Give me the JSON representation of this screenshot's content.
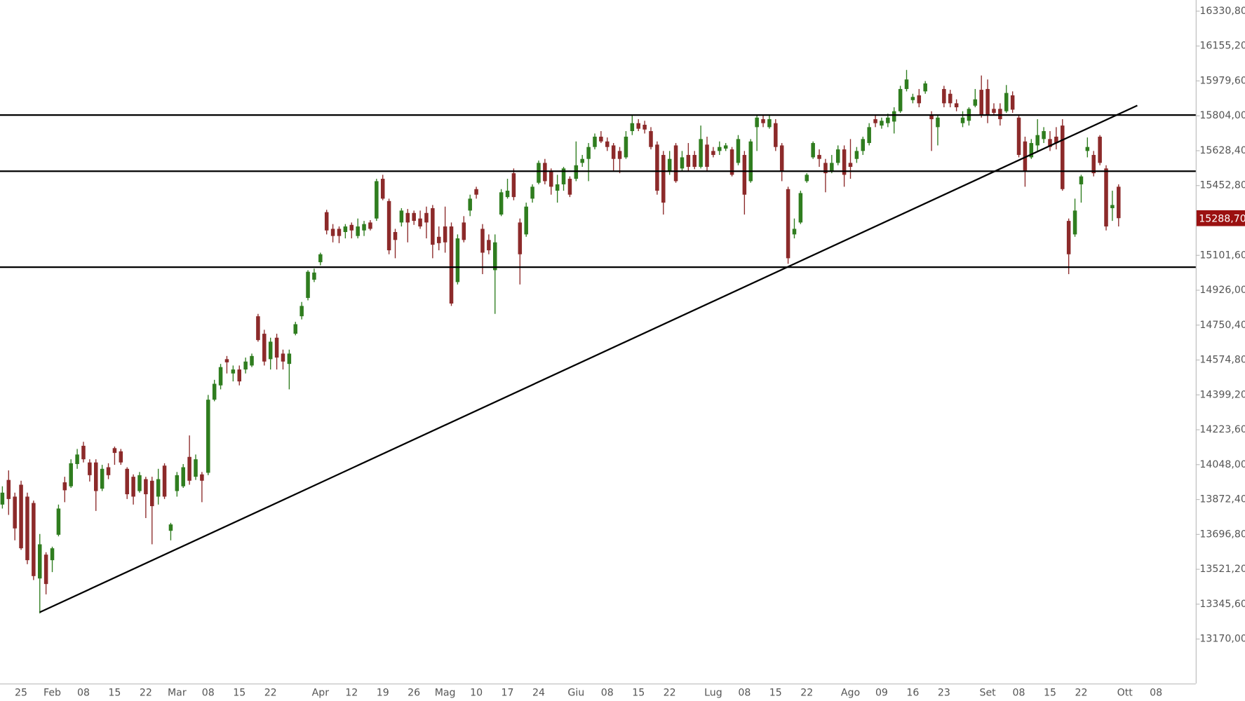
{
  "chart_data": {
    "type": "candlestick",
    "up_color": "#2f7d1f",
    "down_color": "#8c2a2a",
    "line_color": "#000000",
    "grid": false,
    "categories": [
      null,
      null,
      null,
      "25",
      null,
      null,
      null,
      null,
      "Feb",
      null,
      null,
      null,
      null,
      "08",
      null,
      null,
      null,
      null,
      "15",
      null,
      null,
      null,
      null,
      "22",
      null,
      null,
      null,
      null,
      "Mar",
      null,
      null,
      null,
      null,
      "08",
      null,
      null,
      null,
      null,
      "15",
      null,
      null,
      null,
      null,
      "22",
      null,
      null,
      null,
      null,
      null,
      null,
      null,
      "Apr",
      null,
      null,
      null,
      null,
      "12",
      null,
      null,
      null,
      null,
      "19",
      null,
      null,
      null,
      null,
      "26",
      null,
      null,
      null,
      null,
      "Mag",
      null,
      null,
      null,
      null,
      "10",
      null,
      null,
      null,
      null,
      "17",
      null,
      null,
      null,
      null,
      "24",
      null,
      null,
      null,
      null,
      null,
      "Giu",
      null,
      null,
      null,
      null,
      "08",
      null,
      null,
      null,
      null,
      "15",
      null,
      null,
      null,
      null,
      "22",
      null,
      null,
      null,
      null,
      null,
      null,
      "Lug",
      null,
      null,
      null,
      null,
      "08",
      null,
      null,
      null,
      null,
      "15",
      null,
      null,
      null,
      null,
      "22",
      null,
      null,
      null,
      null,
      null,
      null,
      "Ago",
      null,
      null,
      null,
      null,
      "09",
      null,
      null,
      null,
      null,
      "16",
      null,
      null,
      null,
      null,
      "23",
      null,
      null,
      null,
      null,
      null,
      null,
      "Set",
      null,
      null,
      null,
      null,
      "08",
      null,
      null,
      null,
      null,
      "15",
      null,
      null,
      null,
      null,
      "22",
      null,
      null,
      null,
      null,
      null,
      null,
      "Ott",
      null,
      null,
      null,
      null,
      "08"
    ],
    "open": [
      13847,
      13971,
      13887,
      13947,
      13887,
      13855,
      13475,
      13595,
      13567,
      13695,
      13959,
      13939,
      14051,
      14143,
      14059,
      14059,
      13927,
      14035,
      14131,
      14115,
      14027,
      13987,
      13915,
      13975,
      13967,
      13887,
      14043,
      13715,
      13915,
      13939,
      14087,
      13987,
      13999,
      14007,
      14375,
      14447,
      14579,
      14507,
      14527,
      14527,
      14547,
      14795,
      14707,
      14579,
      14687,
      14607,
      14555,
      14707,
      14795,
      14887,
      14979,
      15067,
      15319,
      15235,
      15235,
      15219,
      15255,
      15199,
      15227,
      15267,
      15287,
      15487,
      15375,
      15219,
      15267,
      15315,
      15315,
      15287,
      15315,
      15339,
      15195,
      15247,
      15247,
      14967,
      15267,
      15327,
      15435,
      15235,
      15179,
      15027,
      15307,
      15395,
      15515,
      15267,
      15207,
      15387,
      15467,
      15567,
      15527,
      15427,
      15459,
      15487,
      15487,
      15567,
      15587,
      15647,
      15699,
      15675,
      15655,
      15627,
      15595,
      15727,
      15767,
      15759,
      15727,
      15659,
      15607,
      15527,
      15655,
      15539,
      15607,
      15607,
      15547,
      15659,
      15627,
      15627,
      15639,
      15635,
      15567,
      15607,
      15475,
      15747,
      15787,
      15747,
      15767,
      15655,
      15435,
      15207,
      15267,
      15475,
      15595,
      15607,
      15567,
      15527,
      15567,
      15635,
      15567,
      15587,
      15627,
      15667,
      15787,
      15755,
      15767,
      15775,
      15827,
      15939,
      15883,
      15907,
      15927,
      15807,
      15747,
      15939,
      15915,
      15867,
      15767,
      15779,
      15855,
      15935,
      15939,
      15839,
      15839,
      15827,
      15907,
      15795,
      15675,
      15595,
      15655,
      15687,
      15687,
      15699,
      15755,
      15275,
      15207,
      15459,
      15627,
      15607,
      15699,
      15539,
      15339,
      15447,
      null,
      null,
      null,
      null,
      null,
      null
    ],
    "high": [
      13939,
      14019,
      13907,
      13967,
      13907,
      13867,
      13699,
      13607,
      13635,
      13847,
      13987,
      14075,
      14127,
      14163,
      14075,
      14075,
      14047,
      14055,
      14139,
      14127,
      14035,
      13999,
      14011,
      13987,
      13987,
      14027,
      14055,
      13755,
      14011,
      14051,
      14195,
      14099,
      14011,
      14399,
      14475,
      14555,
      14595,
      14547,
      14547,
      14587,
      14607,
      14807,
      14727,
      14687,
      14707,
      14627,
      14627,
      14767,
      14867,
      15027,
      15035,
      15115,
      15331,
      15259,
      15247,
      15259,
      15267,
      15287,
      15275,
      15279,
      15487,
      15507,
      15387,
      15235,
      15339,
      15335,
      15327,
      15327,
      15347,
      15355,
      15247,
      15347,
      15267,
      15207,
      15299,
      15407,
      15447,
      15259,
      15207,
      15207,
      15435,
      15487,
      15539,
      15287,
      15367,
      15459,
      15579,
      15587,
      15539,
      15507,
      15547,
      15499,
      15675,
      15607,
      15667,
      15715,
      15727,
      15695,
      15667,
      15647,
      15727,
      15807,
      15787,
      15779,
      15747,
      15675,
      15627,
      15627,
      15667,
      15627,
      15667,
      15627,
      15755,
      15699,
      15647,
      15675,
      15667,
      15647,
      15707,
      15627,
      15687,
      15807,
      15807,
      15807,
      15787,
      15667,
      15447,
      15287,
      15427,
      15515,
      15675,
      15635,
      15587,
      15607,
      15655,
      15655,
      15687,
      15647,
      15699,
      15767,
      15807,
      15795,
      15815,
      15847,
      15955,
      16035,
      15915,
      15939,
      15979,
      15827,
      15807,
      15955,
      15935,
      15887,
      15827,
      15847,
      15939,
      16007,
      15987,
      15867,
      15867,
      15959,
      15927,
      15807,
      15699,
      15687,
      15787,
      15747,
      15727,
      15747,
      15787,
      15287,
      15387,
      15507,
      15695,
      15627,
      15707,
      15555,
      15427,
      15459,
      null,
      null,
      null,
      null,
      null,
      null
    ],
    "low": [
      13827,
      13795,
      13667,
      13619,
      13547,
      13467,
      13299,
      13395,
      13507,
      13687,
      13859,
      13931,
      14027,
      14059,
      13963,
      13815,
      13915,
      13975,
      14047,
      14047,
      13875,
      13847,
      13907,
      13779,
      13647,
      13847,
      13875,
      13667,
      13887,
      13931,
      13947,
      13971,
      13859,
      13995,
      14367,
      14427,
      14507,
      14467,
      14447,
      14507,
      14539,
      14667,
      14547,
      14527,
      14527,
      14527,
      14427,
      14699,
      14779,
      14875,
      14967,
      15051,
      15207,
      15167,
      15163,
      15187,
      15187,
      15187,
      15199,
      15227,
      15275,
      15379,
      15107,
      15087,
      15247,
      15167,
      15255,
      15235,
      15187,
      15087,
      15127,
      15115,
      14847,
      14955,
      15167,
      15299,
      15387,
      15007,
      15107,
      14807,
      15299,
      15387,
      15379,
      14955,
      15195,
      15367,
      15459,
      15459,
      15407,
      15367,
      15427,
      15395,
      15475,
      15547,
      15475,
      15635,
      15667,
      15627,
      15527,
      15515,
      15587,
      15707,
      15727,
      15715,
      15635,
      15407,
      15307,
      15507,
      15467,
      15527,
      15527,
      15535,
      15539,
      15527,
      15595,
      15607,
      15627,
      15499,
      15555,
      15307,
      15467,
      15627,
      15747,
      15739,
      15627,
      15475,
      15059,
      15187,
      15259,
      15467,
      15587,
      15547,
      15419,
      15515,
      15555,
      15447,
      15487,
      15567,
      15607,
      15655,
      15747,
      15739,
      15747,
      15715,
      15819,
      15927,
      15867,
      15847,
      15915,
      15627,
      15655,
      15847,
      15847,
      15827,
      15747,
      15755,
      15847,
      15795,
      15767,
      15807,
      15755,
      15819,
      15819,
      15595,
      15447,
      15587,
      15627,
      15667,
      15627,
      15635,
      15427,
      15007,
      15195,
      15367,
      15595,
      15499,
      15555,
      15227,
      15275,
      15247,
      null,
      null,
      null,
      null,
      null,
      null
    ],
    "close": [
      13907,
      13875,
      13727,
      13627,
      13567,
      13487,
      13647,
      13447,
      13627,
      13827,
      13919,
      14055,
      14099,
      14075,
      13995,
      13915,
      14027,
      13995,
      14107,
      14059,
      13899,
      13887,
      13995,
      13899,
      13839,
      13975,
      13887,
      13747,
      13995,
      14035,
      13967,
      14075,
      13967,
      14375,
      14455,
      14539,
      14563,
      14527,
      14467,
      14567,
      14595,
      14675,
      14567,
      14667,
      14587,
      14567,
      14607,
      14755,
      14847,
      15019,
      15015,
      15107,
      15227,
      15199,
      15199,
      15247,
      15227,
      15247,
      15259,
      15235,
      15475,
      15387,
      15127,
      15179,
      15327,
      15267,
      15275,
      15247,
      15267,
      15155,
      15163,
      15167,
      14859,
      15187,
      15179,
      15387,
      15407,
      15115,
      15127,
      15167,
      15419,
      15427,
      15395,
      15107,
      15347,
      15447,
      15567,
      15475,
      15447,
      15459,
      15539,
      15407,
      15555,
      15587,
      15647,
      15699,
      15675,
      15647,
      15587,
      15587,
      15699,
      15767,
      15739,
      15735,
      15647,
      15427,
      15367,
      15587,
      15475,
      15595,
      15547,
      15547,
      15687,
      15547,
      15607,
      15647,
      15655,
      15507,
      15687,
      15407,
      15675,
      15795,
      15767,
      15787,
      15647,
      15527,
      15087,
      15235,
      15415,
      15507,
      15667,
      15587,
      15515,
      15567,
      15635,
      15507,
      15547,
      15627,
      15687,
      15747,
      15767,
      15779,
      15795,
      15827,
      15939,
      15987,
      15899,
      15867,
      15967,
      15787,
      15795,
      15867,
      15867,
      15847,
      15795,
      15839,
      15887,
      15807,
      15807,
      15819,
      15787,
      15919,
      15835,
      15607,
      15527,
      15667,
      15707,
      15727,
      15647,
      15667,
      15435,
      15107,
      15327,
      15499,
      15647,
      15515,
      15567,
      15247,
      15355,
      15288.7,
      null,
      null,
      null,
      null,
      null,
      null
    ],
    "ylim": [
      12946,
      16387
    ],
    "yticks": [
      {
        "value": 13170.0,
        "label": "13170,00"
      },
      {
        "value": 13345.6,
        "label": "13345,60"
      },
      {
        "value": 13521.2,
        "label": "13521,20"
      },
      {
        "value": 13696.8,
        "label": "13696,80"
      },
      {
        "value": 13872.4,
        "label": "13872,40"
      },
      {
        "value": 14048.0,
        "label": "14048,00"
      },
      {
        "value": 14223.6,
        "label": "14223,60"
      },
      {
        "value": 14399.2,
        "label": "14399,20"
      },
      {
        "value": 14574.8,
        "label": "14574,80"
      },
      {
        "value": 14750.4,
        "label": "14750,40"
      },
      {
        "value": 14926.0,
        "label": "14926,00"
      },
      {
        "value": 15101.6,
        "label": "15101,60"
      },
      {
        "value": 15452.8,
        "label": "15452,80"
      },
      {
        "value": 15628.4,
        "label": "15628,40"
      },
      {
        "value": 15804.0,
        "label": "15804,00"
      },
      {
        "value": 15979.6,
        "label": "15979,60"
      },
      {
        "value": 16155.2,
        "label": "16155,20"
      },
      {
        "value": 16330.8,
        "label": "16330,80"
      }
    ],
    "horizontal_lines": [
      15808,
      15525,
      15042
    ],
    "trendline": {
      "x": [
        6,
        182
      ],
      "y": [
        13305,
        15856
      ]
    },
    "last_price": {
      "value": 15288.7,
      "label": "15288,70",
      "color": "#9b1111"
    }
  }
}
